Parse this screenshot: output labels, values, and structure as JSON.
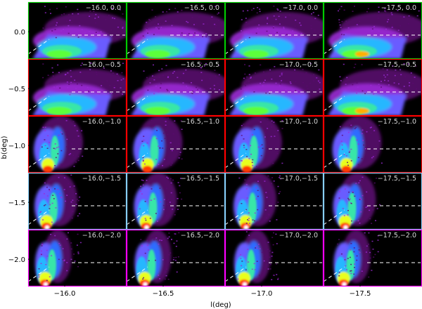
{
  "chart_data": {
    "type": "heatmap",
    "xlabel": "l(deg)",
    "ylabel": "b(deg)",
    "columns": [
      "-16.0",
      "-16.5",
      "-17.0",
      "-17.5"
    ],
    "rows": [
      "0.0",
      "-0.5",
      "-1.0",
      "-1.5",
      "-2.0"
    ],
    "x_tick_labels": [
      "−16.0",
      "−16.5",
      "−17.0",
      "−17.5"
    ],
    "y_tick_labels": [
      "0.0",
      "−0.5",
      "−1.0",
      "−1.5",
      "−2.0"
    ],
    "panel_labels": [
      [
        "−16.0, 0.0",
        "−16.5, 0.0",
        "−17.0, 0.0",
        "−17.5, 0.0"
      ],
      [
        "−16.0,−0.5",
        "−16.5,−0.5",
        "−17.0,−0.5",
        "−17.5,−0.5"
      ],
      [
        "−16.0,−1.0",
        "−16.5,−1.0",
        "−17.0,−1.0",
        "−17.5,−1.0"
      ],
      [
        "−16.0,−1.5",
        "−16.5,−1.5",
        "−17.0,−1.5",
        "−17.5,−1.5"
      ],
      [
        "−16.0,−2.0",
        "−16.5,−2.0",
        "−17.0,−2.0",
        "−17.5,−2.0"
      ]
    ],
    "row_border_colors": [
      "#00cc00",
      "#ff0000",
      "#ff0000",
      "#87cefa",
      "#ff00ff"
    ],
    "colormap": [
      "#000000",
      "#5a0a6e",
      "#9b2bd6",
      "#6a5cff",
      "#2f6cff",
      "#27b7ff",
      "#39e6a8",
      "#5cff3a",
      "#e8ff1e",
      "#ffb000",
      "#ff3a00",
      "#ffffff"
    ],
    "reference_lines": "dashed white horizontal and diagonal lines",
    "grid": false,
    "legend": "none"
  }
}
